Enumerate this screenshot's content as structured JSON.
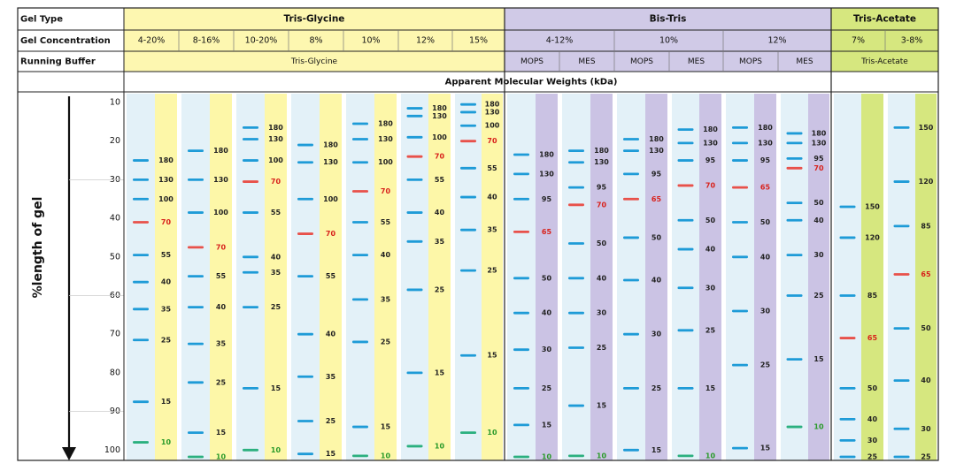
{
  "header": {
    "row_labels": [
      "Gel Type",
      "Gel Concentration",
      "Running Buffer"
    ],
    "chart_title": "Apparent Molecular Weights (kDa)",
    "gel_types": [
      "Tris-Glycine",
      "Bis-Tris",
      "Tris-Acetate"
    ],
    "concentrations": [
      "4-20%",
      "8-16%",
      "10-20%",
      "8%",
      "10%",
      "12%",
      "15%",
      "4-12%",
      "10%",
      "12%",
      "7%",
      "3-8%"
    ],
    "buffers": [
      "Tris-Glycine",
      "MOPS",
      "MES",
      "MOPS",
      "MES",
      "MOPS",
      "MES",
      "Tris-Acetate"
    ]
  },
  "axis": {
    "label": "%length of gel",
    "ticks": [
      10,
      20,
      30,
      40,
      50,
      60,
      70,
      80,
      90,
      100
    ]
  },
  "colors": {
    "tris_glycine_header": "#fdf7b0",
    "tris_glycine_label_lane": "#fdf7a8",
    "bis_tris_header": "#d0cae7",
    "bis_tris_label_lane": "#cbc3e4",
    "tris_acetate_header": "#d6e77f",
    "tris_acetate_label_lane": "#d6e77f",
    "sample_lane": "#e3f1f8",
    "band_default": "#1e9bd7",
    "band_reference": "#e8514a",
    "band_dye_front": "#2bb07f",
    "label_default": "#222222",
    "label_reference": "#d8221c",
    "label_dye_front": "#2a9a2a"
  },
  "chart_data": {
    "type": "gel",
    "title": "Apparent Molecular Weights (kDa)",
    "ylabel": "%length of gel",
    "ylim": [
      10,
      100
    ],
    "lanes": [
      {
        "gel": "Tris-Glycine",
        "concentration": "4-20%",
        "buffer": "Tris-Glycine",
        "bands": [
          {
            "kda": "180",
            "pos": 25
          },
          {
            "kda": "130",
            "pos": 30
          },
          {
            "kda": "100",
            "pos": 35
          },
          {
            "kda": "70",
            "pos": 41,
            "ref": true
          },
          {
            "kda": "55",
            "pos": 49.5
          },
          {
            "kda": "40",
            "pos": 56.5
          },
          {
            "kda": "35",
            "pos": 63.5
          },
          {
            "kda": "25",
            "pos": 71.5
          },
          {
            "kda": "15",
            "pos": 87.5
          },
          {
            "kda": "10",
            "pos": 98,
            "dye": true
          }
        ]
      },
      {
        "gel": "Tris-Glycine",
        "concentration": "8-16%",
        "buffer": "Tris-Glycine",
        "bands": [
          {
            "kda": "180",
            "pos": 22.5
          },
          {
            "kda": "130",
            "pos": 30
          },
          {
            "kda": "100",
            "pos": 38.5
          },
          {
            "kda": "70",
            "pos": 47.5,
            "ref": true
          },
          {
            "kda": "55",
            "pos": 55
          },
          {
            "kda": "40",
            "pos": 63
          },
          {
            "kda": "35",
            "pos": 72.5
          },
          {
            "kda": "25",
            "pos": 82.5
          },
          {
            "kda": "15",
            "pos": 95.5
          },
          {
            "kda": "10",
            "pos": 102,
            "dye": true
          }
        ]
      },
      {
        "gel": "Tris-Glycine",
        "concentration": "10-20%",
        "buffer": "Tris-Glycine",
        "bands": [
          {
            "kda": "180",
            "pos": 16.5
          },
          {
            "kda": "130",
            "pos": 19.5
          },
          {
            "kda": "100",
            "pos": 25
          },
          {
            "kda": "70",
            "pos": 30.5,
            "ref": true
          },
          {
            "kda": "55",
            "pos": 38.5
          },
          {
            "kda": "40",
            "pos": 50
          },
          {
            "kda": "35",
            "pos": 54
          },
          {
            "kda": "25",
            "pos": 63
          },
          {
            "kda": "15",
            "pos": 84
          },
          {
            "kda": "10",
            "pos": 100,
            "dye": true
          }
        ]
      },
      {
        "gel": "Tris-Glycine",
        "concentration": "8%",
        "buffer": "Tris-Glycine",
        "bands": [
          {
            "kda": "180",
            "pos": 21
          },
          {
            "kda": "130",
            "pos": 25.5
          },
          {
            "kda": "100",
            "pos": 35
          },
          {
            "kda": "70",
            "pos": 44,
            "ref": true
          },
          {
            "kda": "55",
            "pos": 55
          },
          {
            "kda": "40",
            "pos": 70
          },
          {
            "kda": "35",
            "pos": 81
          },
          {
            "kda": "25",
            "pos": 92.5
          },
          {
            "kda": "15",
            "pos": 101
          }
        ]
      },
      {
        "gel": "Tris-Glycine",
        "concentration": "10%",
        "buffer": "Tris-Glycine",
        "bands": [
          {
            "kda": "180",
            "pos": 15.5
          },
          {
            "kda": "130",
            "pos": 19.5
          },
          {
            "kda": "100",
            "pos": 25.5
          },
          {
            "kda": "70",
            "pos": 33,
            "ref": true
          },
          {
            "kda": "55",
            "pos": 41
          },
          {
            "kda": "40",
            "pos": 49.5
          },
          {
            "kda": "35",
            "pos": 61
          },
          {
            "kda": "25",
            "pos": 72
          },
          {
            "kda": "15",
            "pos": 94
          },
          {
            "kda": "10",
            "pos": 101.5,
            "dye": true
          }
        ]
      },
      {
        "gel": "Tris-Glycine",
        "concentration": "12%",
        "buffer": "Tris-Glycine",
        "bands": [
          {
            "kda": "180",
            "pos": 11.5
          },
          {
            "kda": "130",
            "pos": 13.5
          },
          {
            "kda": "100",
            "pos": 19
          },
          {
            "kda": "70",
            "pos": 24,
            "ref": true
          },
          {
            "kda": "55",
            "pos": 30
          },
          {
            "kda": "40",
            "pos": 38.5
          },
          {
            "kda": "35",
            "pos": 46
          },
          {
            "kda": "25",
            "pos": 58.5
          },
          {
            "kda": "15",
            "pos": 80
          },
          {
            "kda": "10",
            "pos": 99,
            "dye": true
          }
        ]
      },
      {
        "gel": "Tris-Glycine",
        "concentration": "15%",
        "buffer": "Tris-Glycine",
        "bands": [
          {
            "kda": "180",
            "pos": 10.5
          },
          {
            "kda": "130",
            "pos": 12.5
          },
          {
            "kda": "100",
            "pos": 16
          },
          {
            "kda": "70",
            "pos": 20,
            "ref": true
          },
          {
            "kda": "55",
            "pos": 27
          },
          {
            "kda": "40",
            "pos": 34.5
          },
          {
            "kda": "35",
            "pos": 43
          },
          {
            "kda": "25",
            "pos": 53.5
          },
          {
            "kda": "15",
            "pos": 75.5
          },
          {
            "kda": "10",
            "pos": 95.5,
            "dye": true
          }
        ]
      },
      {
        "gel": "Bis-Tris",
        "concentration": "4-12%",
        "buffer": "MOPS",
        "bands": [
          {
            "kda": "180",
            "pos": 23.5
          },
          {
            "kda": "130",
            "pos": 28.5
          },
          {
            "kda": "95",
            "pos": 35
          },
          {
            "kda": "65",
            "pos": 43.5,
            "ref": true
          },
          {
            "kda": "50",
            "pos": 55.5
          },
          {
            "kda": "40",
            "pos": 64.5
          },
          {
            "kda": "30",
            "pos": 74
          },
          {
            "kda": "25",
            "pos": 84
          },
          {
            "kda": "15",
            "pos": 93.5
          },
          {
            "kda": "10",
            "pos": 102,
            "dye": true
          }
        ]
      },
      {
        "gel": "Bis-Tris",
        "concentration": "4-12%",
        "buffer": "MES",
        "bands": [
          {
            "kda": "180",
            "pos": 22.5
          },
          {
            "kda": "130",
            "pos": 25.5
          },
          {
            "kda": "95",
            "pos": 32
          },
          {
            "kda": "70",
            "pos": 36.5,
            "ref": true
          },
          {
            "kda": "50",
            "pos": 46.5
          },
          {
            "kda": "40",
            "pos": 55.5
          },
          {
            "kda": "30",
            "pos": 64.5
          },
          {
            "kda": "25",
            "pos": 73.5
          },
          {
            "kda": "15",
            "pos": 88.5
          },
          {
            "kda": "10",
            "pos": 101.5,
            "dye": true
          }
        ]
      },
      {
        "gel": "Bis-Tris",
        "concentration": "10%",
        "buffer": "MOPS",
        "bands": [
          {
            "kda": "180",
            "pos": 19.5
          },
          {
            "kda": "130",
            "pos": 22.5
          },
          {
            "kda": "95",
            "pos": 28.5
          },
          {
            "kda": "65",
            "pos": 35,
            "ref": true
          },
          {
            "kda": "50",
            "pos": 45
          },
          {
            "kda": "40",
            "pos": 56
          },
          {
            "kda": "30",
            "pos": 70
          },
          {
            "kda": "25",
            "pos": 84
          },
          {
            "kda": "15",
            "pos": 100
          }
        ]
      },
      {
        "gel": "Bis-Tris",
        "concentration": "10%",
        "buffer": "MES",
        "bands": [
          {
            "kda": "180",
            "pos": 17
          },
          {
            "kda": "130",
            "pos": 20.5
          },
          {
            "kda": "95",
            "pos": 25
          },
          {
            "kda": "70",
            "pos": 31.5,
            "ref": true
          },
          {
            "kda": "50",
            "pos": 40.5
          },
          {
            "kda": "40",
            "pos": 48
          },
          {
            "kda": "30",
            "pos": 58
          },
          {
            "kda": "25",
            "pos": 69
          },
          {
            "kda": "15",
            "pos": 84
          },
          {
            "kda": "10",
            "pos": 101.5,
            "dye": true
          }
        ]
      },
      {
        "gel": "Bis-Tris",
        "concentration": "12%",
        "buffer": "MOPS",
        "bands": [
          {
            "kda": "180",
            "pos": 16.5
          },
          {
            "kda": "130",
            "pos": 20.5
          },
          {
            "kda": "95",
            "pos": 25
          },
          {
            "kda": "65",
            "pos": 32,
            "ref": true
          },
          {
            "kda": "50",
            "pos": 41
          },
          {
            "kda": "40",
            "pos": 50
          },
          {
            "kda": "30",
            "pos": 64
          },
          {
            "kda": "25",
            "pos": 78
          },
          {
            "kda": "15",
            "pos": 99.5
          }
        ]
      },
      {
        "gel": "Bis-Tris",
        "concentration": "12%",
        "buffer": "MES",
        "bands": [
          {
            "kda": "180",
            "pos": 18
          },
          {
            "kda": "130",
            "pos": 20.5
          },
          {
            "kda": "95",
            "pos": 24.5
          },
          {
            "kda": "70",
            "pos": 27,
            "ref": true
          },
          {
            "kda": "50",
            "pos": 36
          },
          {
            "kda": "40",
            "pos": 40.5
          },
          {
            "kda": "30",
            "pos": 49.5
          },
          {
            "kda": "25",
            "pos": 60
          },
          {
            "kda": "15",
            "pos": 76.5
          },
          {
            "kda": "10",
            "pos": 94,
            "dye": true
          }
        ]
      },
      {
        "gel": "Tris-Acetate",
        "concentration": "7%",
        "buffer": "Tris-Acetate",
        "bands": [
          {
            "kda": "150",
            "pos": 37
          },
          {
            "kda": "120",
            "pos": 45
          },
          {
            "kda": "85",
            "pos": 60
          },
          {
            "kda": "65",
            "pos": 71,
            "ref": true
          },
          {
            "kda": "50",
            "pos": 84
          },
          {
            "kda": "40",
            "pos": 92
          },
          {
            "kda": "30",
            "pos": 97.5
          },
          {
            "kda": "25",
            "pos": 102
          }
        ]
      },
      {
        "gel": "Tris-Acetate",
        "concentration": "3-8%",
        "buffer": "Tris-Acetate",
        "bands": [
          {
            "kda": "150",
            "pos": 16.5
          },
          {
            "kda": "120",
            "pos": 30.5
          },
          {
            "kda": "85",
            "pos": 42
          },
          {
            "kda": "65",
            "pos": 54.5,
            "ref": true
          },
          {
            "kda": "50",
            "pos": 68.5
          },
          {
            "kda": "40",
            "pos": 82
          },
          {
            "kda": "30",
            "pos": 94.5
          },
          {
            "kda": "25",
            "pos": 103
          }
        ]
      }
    ]
  }
}
